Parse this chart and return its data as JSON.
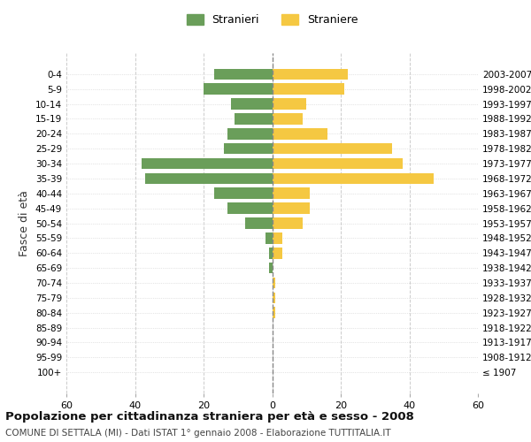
{
  "age_groups": [
    "100+",
    "95-99",
    "90-94",
    "85-89",
    "80-84",
    "75-79",
    "70-74",
    "65-69",
    "60-64",
    "55-59",
    "50-54",
    "45-49",
    "40-44",
    "35-39",
    "30-34",
    "25-29",
    "20-24",
    "15-19",
    "10-14",
    "5-9",
    "0-4"
  ],
  "birth_years": [
    "≤ 1907",
    "1908-1912",
    "1913-1917",
    "1918-1922",
    "1923-1927",
    "1928-1932",
    "1933-1937",
    "1938-1942",
    "1943-1947",
    "1948-1952",
    "1953-1957",
    "1958-1962",
    "1963-1967",
    "1968-1972",
    "1973-1977",
    "1978-1982",
    "1983-1987",
    "1988-1992",
    "1993-1997",
    "1998-2002",
    "2003-2007"
  ],
  "males": [
    0,
    0,
    0,
    0,
    0,
    0,
    0,
    1,
    1,
    2,
    8,
    13,
    17,
    37,
    38,
    14,
    13,
    11,
    12,
    20,
    17
  ],
  "females": [
    0,
    0,
    0,
    0,
    1,
    1,
    1,
    0,
    3,
    3,
    9,
    11,
    11,
    47,
    38,
    35,
    16,
    9,
    10,
    21,
    22
  ],
  "male_color": "#6a9e5a",
  "female_color": "#f5c842",
  "title": "Popolazione per cittadinanza straniera per età e sesso - 2008",
  "subtitle": "COMUNE DI SETTALA (MI) - Dati ISTAT 1° gennaio 2008 - Elaborazione TUTTITALIA.IT",
  "legend_male": "Stranieri",
  "legend_female": "Straniere",
  "ylabel_left": "Fasce di età",
  "xlim": 60,
  "background_color": "#ffffff",
  "grid_color": "#cccccc"
}
